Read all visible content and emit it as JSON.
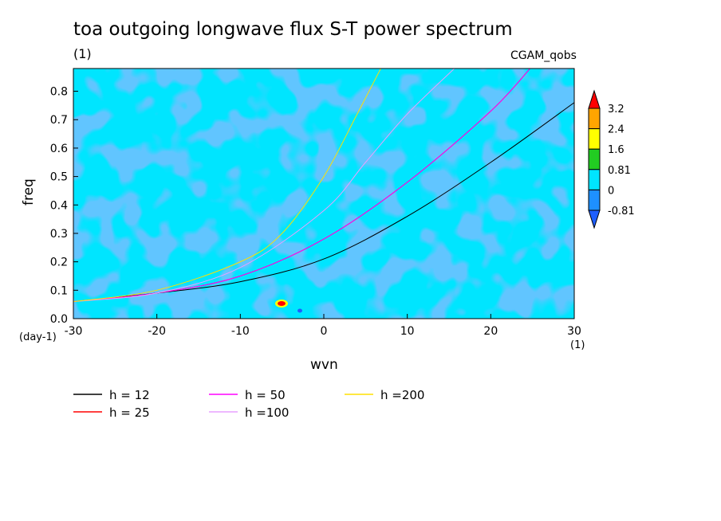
{
  "title": "toa outgoing longwave flux S-T power spectrum",
  "subtitle": "(1)",
  "dataset_label": "CGAM_qobs",
  "chart_data": {
    "type": "heatmap",
    "xlabel": "wvn",
    "ylabel": "freq",
    "x_unit": "(1)",
    "y_unit": "(day-1)",
    "xlim": [
      -30,
      30
    ],
    "ylim": [
      0,
      0.88
    ],
    "x_ticks": [
      -30,
      -20,
      -10,
      0,
      10,
      20,
      30
    ],
    "y_ticks": [
      0.0,
      0.1,
      0.2,
      0.3,
      0.4,
      0.5,
      0.6,
      0.7,
      0.8
    ],
    "colorbar": {
      "levels": [
        "3.2",
        "2.4",
        "1.6",
        "0.81",
        "0",
        "-0.81"
      ],
      "colors": [
        "#ff0000",
        "#ffa500",
        "#ffff00",
        "#22cc22",
        "#00e5ff",
        "#1e90ff",
        "#1e5fff"
      ]
    },
    "series": [
      {
        "name": "h = 12",
        "color": "#000000",
        "x": [
          -30,
          -20,
          -10,
          0,
          10,
          20,
          30
        ],
        "y": [
          0.06,
          0.09,
          0.13,
          0.21,
          0.36,
          0.55,
          0.76
        ]
      },
      {
        "name": "h = 25",
        "color": "#ff0000",
        "x": [
          -30,
          -20,
          -10,
          0,
          10,
          20,
          25
        ],
        "y": [
          0.06,
          0.09,
          0.15,
          0.28,
          0.48,
          0.73,
          0.89
        ]
      },
      {
        "name": "h = 50",
        "color": "#ff00ff",
        "x": [
          -30,
          -20,
          -10,
          0,
          10,
          20,
          25
        ],
        "y": [
          0.06,
          0.09,
          0.15,
          0.28,
          0.48,
          0.73,
          0.89
        ]
      },
      {
        "name": "h =100",
        "color": "#e8a0ff",
        "x": [
          -30,
          -20,
          -10,
          0,
          5,
          10,
          16
        ],
        "y": [
          0.06,
          0.09,
          0.18,
          0.38,
          0.55,
          0.72,
          0.89
        ]
      },
      {
        "name": "h =200",
        "color": "#ffe000",
        "x": [
          -30,
          -20,
          -10,
          -5,
          0,
          4,
          7
        ],
        "y": [
          0.06,
          0.1,
          0.2,
          0.3,
          0.5,
          0.72,
          0.89
        ]
      }
    ]
  }
}
